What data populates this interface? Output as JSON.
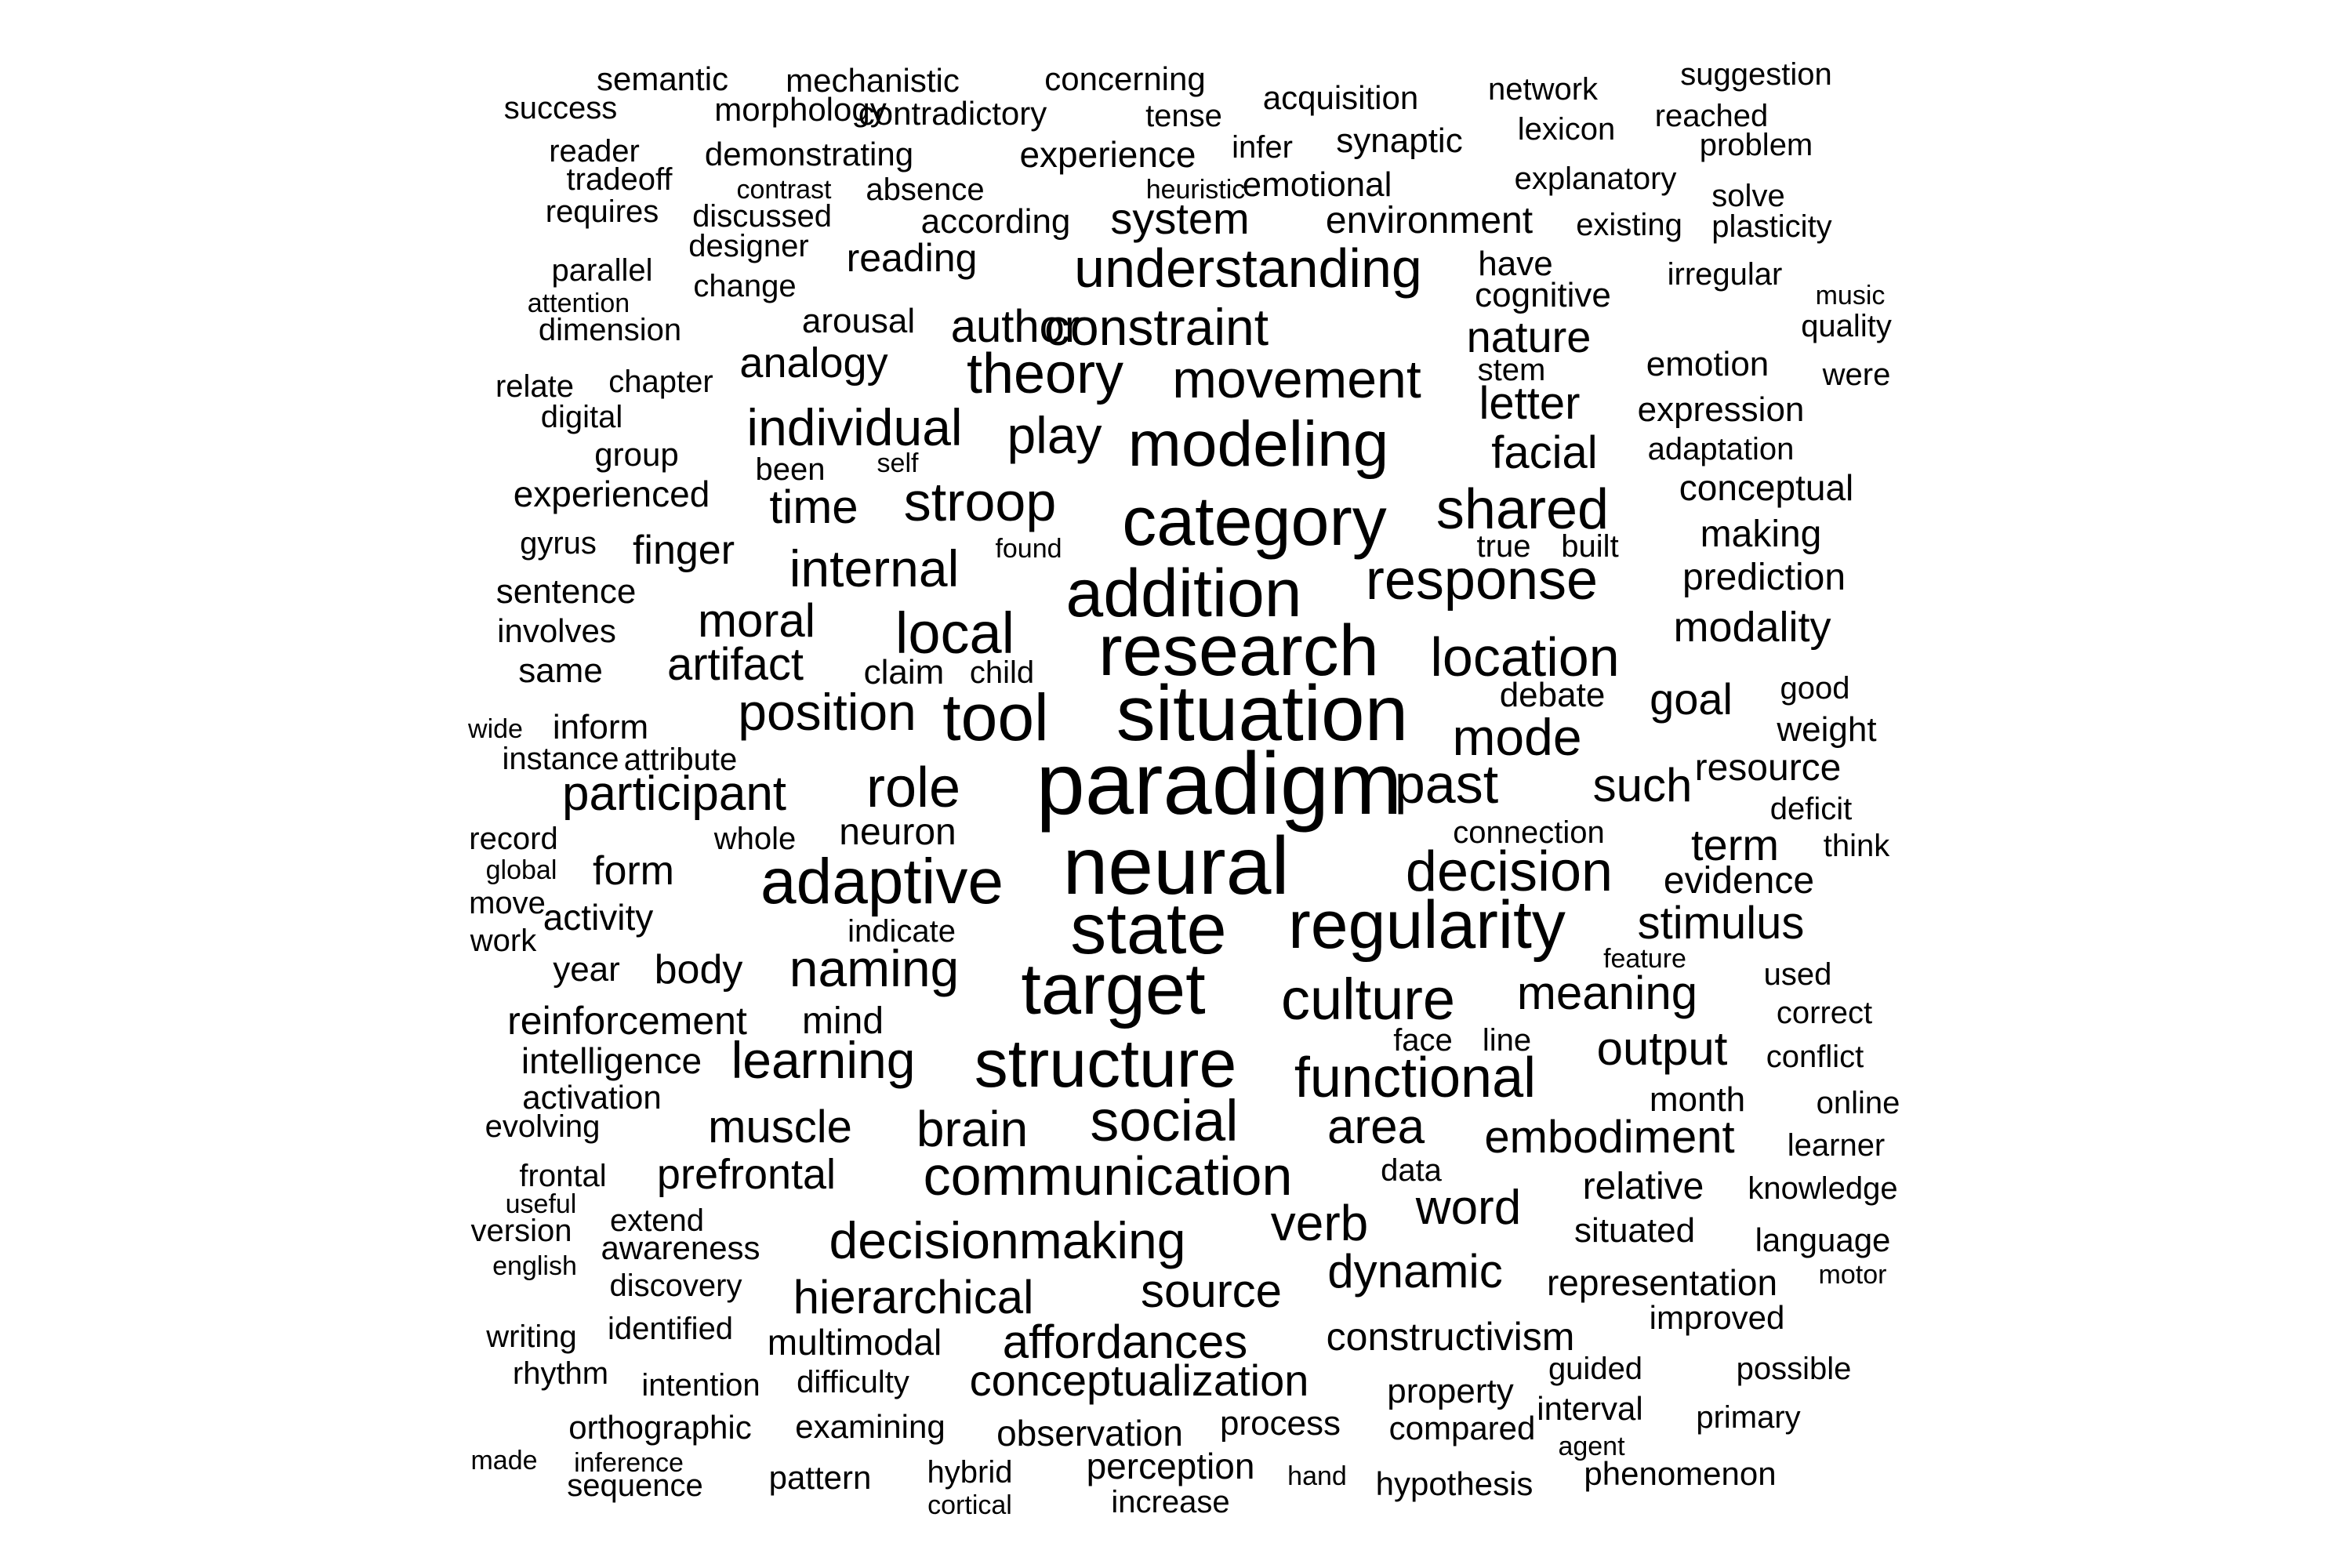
{
  "text_color": "#000000",
  "background_color": "#ffffff",
  "words": [
    {
      "text": "paradigm",
      "weight": 1.0
    },
    {
      "text": "neural",
      "weight": 0.93
    },
    {
      "text": "situation",
      "weight": 0.91
    },
    {
      "text": "research",
      "weight": 0.86
    },
    {
      "text": "target",
      "weight": 0.86
    },
    {
      "text": "state",
      "weight": 0.86
    },
    {
      "text": "regularity",
      "weight": 0.85
    },
    {
      "text": "structure",
      "weight": 0.84
    },
    {
      "text": "category",
      "weight": 0.82
    },
    {
      "text": "addition",
      "weight": 0.8
    },
    {
      "text": "tool",
      "weight": 0.78
    },
    {
      "text": "adaptive",
      "weight": 0.76
    },
    {
      "text": "culture",
      "weight": 0.72
    },
    {
      "text": "modeling",
      "weight": 0.76
    },
    {
      "text": "response",
      "weight": 0.7
    },
    {
      "text": "decision",
      "weight": 0.7
    },
    {
      "text": "communication",
      "weight": 0.68
    },
    {
      "text": "social",
      "weight": 0.68
    },
    {
      "text": "local",
      "weight": 0.7
    },
    {
      "text": "functional",
      "weight": 0.68
    },
    {
      "text": "location",
      "weight": 0.68
    },
    {
      "text": "shared",
      "weight": 0.68
    },
    {
      "text": "understanding",
      "weight": 0.66
    },
    {
      "text": "movement",
      "weight": 0.66
    },
    {
      "text": "past",
      "weight": 0.66
    },
    {
      "text": "role",
      "weight": 0.66
    },
    {
      "text": "stroop",
      "weight": 0.66
    },
    {
      "text": "theory",
      "weight": 0.66
    },
    {
      "text": "decisionmaking",
      "weight": 0.64
    },
    {
      "text": "position",
      "weight": 0.64
    },
    {
      "text": "constraint",
      "weight": 0.62
    },
    {
      "text": "mode",
      "weight": 0.62
    },
    {
      "text": "naming",
      "weight": 0.62
    },
    {
      "text": "participant",
      "weight": 0.6
    },
    {
      "text": "learning",
      "weight": 0.6
    },
    {
      "text": "internal",
      "weight": 0.6
    },
    {
      "text": "individual",
      "weight": 0.6
    },
    {
      "text": "play",
      "weight": 0.6
    },
    {
      "text": "affordances",
      "weight": 0.58
    },
    {
      "text": "hierarchical",
      "weight": 0.56
    },
    {
      "text": "verb",
      "weight": 0.6
    },
    {
      "text": "meaning",
      "weight": 0.58
    },
    {
      "text": "dynamic",
      "weight": 0.58
    },
    {
      "text": "word",
      "weight": 0.58
    },
    {
      "text": "source",
      "weight": 0.58
    },
    {
      "text": "such",
      "weight": 0.58
    },
    {
      "text": "brain",
      "weight": 0.58
    },
    {
      "text": "stimulus",
      "weight": 0.56
    },
    {
      "text": "output",
      "weight": 0.56
    },
    {
      "text": "embodiment",
      "weight": 0.56
    },
    {
      "text": "area",
      "weight": 0.56
    },
    {
      "text": "moral",
      "weight": 0.56
    },
    {
      "text": "muscle",
      "weight": 0.56
    },
    {
      "text": "conceptualization",
      "weight": 0.52
    },
    {
      "text": "artifact",
      "weight": 0.54
    },
    {
      "text": "time",
      "weight": 0.56
    },
    {
      "text": "author",
      "weight": 0.54
    },
    {
      "text": "goal",
      "weight": 0.54
    },
    {
      "text": "term",
      "weight": 0.54
    },
    {
      "text": "facial",
      "weight": 0.54
    },
    {
      "text": "nature",
      "weight": 0.52
    },
    {
      "text": "letter",
      "weight": 0.52
    },
    {
      "text": "analogy",
      "weight": 0.5
    },
    {
      "text": "prefrontal",
      "weight": 0.5
    },
    {
      "text": "constructivism",
      "weight": 0.5
    },
    {
      "text": "system",
      "weight": 0.5
    },
    {
      "text": "body",
      "weight": 0.48
    },
    {
      "text": "relative",
      "weight": 0.46
    },
    {
      "text": "modality",
      "weight": 0.5
    },
    {
      "text": "form",
      "weight": 0.48
    },
    {
      "text": "finger",
      "weight": 0.48
    },
    {
      "text": "reinforcement",
      "weight": 0.46
    },
    {
      "text": "neuron",
      "weight": 0.46
    },
    {
      "text": "evidence",
      "weight": 0.46
    },
    {
      "text": "prediction",
      "weight": 0.46
    },
    {
      "text": "making",
      "weight": 0.46
    },
    {
      "text": "mind",
      "weight": 0.46
    },
    {
      "text": "reading",
      "weight": 0.46
    },
    {
      "text": "representation",
      "weight": 0.44
    },
    {
      "text": "experience",
      "weight": 0.44
    },
    {
      "text": "environment",
      "weight": 0.44
    },
    {
      "text": "intelligence",
      "weight": 0.44
    },
    {
      "text": "activity",
      "weight": 0.44
    },
    {
      "text": "conceptual",
      "weight": 0.44
    },
    {
      "text": "resource",
      "weight": 0.44
    },
    {
      "text": "multimodal",
      "weight": 0.44
    },
    {
      "text": "arousal",
      "weight": 0.44
    },
    {
      "text": "observation",
      "weight": 0.44
    },
    {
      "text": "perception",
      "weight": 0.44
    },
    {
      "text": "process",
      "weight": 0.44
    },
    {
      "text": "experienced",
      "weight": 0.42
    },
    {
      "text": "expression",
      "weight": 0.42
    },
    {
      "text": "debate",
      "weight": 0.42
    },
    {
      "text": "situated",
      "weight": 0.42
    },
    {
      "text": "according",
      "weight": 0.42
    },
    {
      "text": "emotional",
      "weight": 0.42
    },
    {
      "text": "synaptic",
      "weight": 0.42
    },
    {
      "text": "cognitive",
      "weight": 0.42
    },
    {
      "text": "emotion",
      "weight": 0.42
    },
    {
      "text": "inform",
      "weight": 0.42
    },
    {
      "text": "sentence",
      "weight": 0.42
    },
    {
      "text": "property",
      "weight": 0.42
    },
    {
      "text": "weight",
      "weight": 0.42
    },
    {
      "text": "have",
      "weight": 0.42
    },
    {
      "text": "same",
      "weight": 0.42
    },
    {
      "text": "claim",
      "weight": 0.42
    },
    {
      "text": "year",
      "weight": 0.42
    },
    {
      "text": "month",
      "weight": 0.42
    },
    {
      "text": "improved",
      "weight": 0.4
    },
    {
      "text": "language",
      "weight": 0.4
    },
    {
      "text": "demonstrating",
      "weight": 0.4
    },
    {
      "text": "involves",
      "weight": 0.4
    },
    {
      "text": "awareness",
      "weight": 0.4
    },
    {
      "text": "connection",
      "weight": 0.4
    },
    {
      "text": "examining",
      "weight": 0.4
    },
    {
      "text": "hypothesis",
      "weight": 0.4
    },
    {
      "text": "acquisition",
      "weight": 0.4
    },
    {
      "text": "group",
      "weight": 0.4
    },
    {
      "text": "face",
      "weight": 0.4
    },
    {
      "text": "online",
      "weight": 0.4
    },
    {
      "text": "interval",
      "weight": 0.4
    },
    {
      "text": "compared",
      "weight": 0.4
    },
    {
      "text": "activation",
      "weight": 0.4
    },
    {
      "text": "correct",
      "weight": 0.4
    },
    {
      "text": "pattern",
      "weight": 0.4
    },
    {
      "text": "evolving",
      "weight": 0.4
    },
    {
      "text": "primary",
      "weight": 0.4
    },
    {
      "text": "phenomenon",
      "weight": 0.4
    },
    {
      "text": "orthographic",
      "weight": 0.4
    },
    {
      "text": "concerning",
      "weight": 0.4
    },
    {
      "text": "explanatory",
      "weight": 0.4
    },
    {
      "text": "knowledge",
      "weight": 0.4
    },
    {
      "text": "adaptation",
      "weight": 0.4
    },
    {
      "text": "mechanistic",
      "weight": 0.4
    },
    {
      "text": "contradictory",
      "weight": 0.4
    },
    {
      "text": "morphology",
      "weight": 0.4
    },
    {
      "text": "dimension",
      "weight": 0.4
    },
    {
      "text": "semantic",
      "weight": 0.4
    },
    {
      "text": "quality",
      "weight": 0.4
    },
    {
      "text": "plasticity",
      "weight": 0.4
    },
    {
      "text": "existing",
      "weight": 0.4
    },
    {
      "text": "identified",
      "weight": 0.4
    },
    {
      "text": "suggestion",
      "weight": 0.4
    },
    {
      "text": "increase",
      "weight": 0.4
    },
    {
      "text": "sequence",
      "weight": 0.4
    },
    {
      "text": "conflict",
      "weight": 0.4
    },
    {
      "text": "success",
      "weight": 0.4
    },
    {
      "text": "network",
      "weight": 0.4
    },
    {
      "text": "reached",
      "weight": 0.4
    },
    {
      "text": "problem",
      "weight": 0.4
    },
    {
      "text": "lexicon",
      "weight": 0.4
    },
    {
      "text": "version",
      "weight": 0.4
    },
    {
      "text": "frontal",
      "weight": 0.4
    },
    {
      "text": "learner",
      "weight": 0.4
    },
    {
      "text": "discovery",
      "weight": 0.4
    },
    {
      "text": "guided",
      "weight": 0.4
    },
    {
      "text": "tense",
      "weight": 0.4
    },
    {
      "text": "absence",
      "weight": 0.4
    },
    {
      "text": "instance",
      "weight": 0.4
    },
    {
      "text": "rhythm",
      "weight": 0.4
    },
    {
      "text": "possible",
      "weight": 0.4
    },
    {
      "text": "tradeoff",
      "weight": 0.4
    },
    {
      "text": "discussed",
      "weight": 0.4
    },
    {
      "text": "difficulty",
      "weight": 0.4
    },
    {
      "text": "intention",
      "weight": 0.4
    },
    {
      "text": "writing",
      "weight": 0.4
    },
    {
      "text": "reader",
      "weight": 0.4
    },
    {
      "text": "requires",
      "weight": 0.4
    },
    {
      "text": "infer",
      "weight": 0.4
    },
    {
      "text": "parallel",
      "weight": 0.4
    },
    {
      "text": "change",
      "weight": 0.4
    },
    {
      "text": "chapter",
      "weight": 0.4
    },
    {
      "text": "designer",
      "weight": 0.4
    },
    {
      "text": "relate",
      "weight": 0.4
    },
    {
      "text": "digital",
      "weight": 0.4
    },
    {
      "text": "irregular",
      "weight": 0.4
    },
    {
      "text": "solve",
      "weight": 0.4
    },
    {
      "text": "good",
      "weight": 0.4
    },
    {
      "text": "think",
      "weight": 0.4
    },
    {
      "text": "used",
      "weight": 0.4
    },
    {
      "text": "were",
      "weight": 0.4
    },
    {
      "text": "gyrus",
      "weight": 0.4
    },
    {
      "text": "indicate",
      "weight": 0.4
    },
    {
      "text": "whole",
      "weight": 0.4
    },
    {
      "text": "record",
      "weight": 0.4
    },
    {
      "text": "move",
      "weight": 0.4
    },
    {
      "text": "work",
      "weight": 0.4
    },
    {
      "text": "hybrid",
      "weight": 0.4
    },
    {
      "text": "been",
      "weight": 0.4
    },
    {
      "text": "built",
      "weight": 0.4
    },
    {
      "text": "true",
      "weight": 0.4
    },
    {
      "text": "stem",
      "weight": 0.4
    },
    {
      "text": "child",
      "weight": 0.4
    },
    {
      "text": "line",
      "weight": 0.4
    },
    {
      "text": "data",
      "weight": 0.4
    },
    {
      "text": "extend",
      "weight": 0.4
    },
    {
      "text": "attribute",
      "weight": 0.4
    },
    {
      "text": "deficit",
      "weight": 0.4
    },
    {
      "text": "made",
      "weight": 0.36
    },
    {
      "text": "inference",
      "weight": 0.36
    },
    {
      "text": "cortical",
      "weight": 0.36
    },
    {
      "text": "hand",
      "weight": 0.36
    },
    {
      "text": "agent",
      "weight": 0.36
    },
    {
      "text": "english",
      "weight": 0.36
    },
    {
      "text": "useful",
      "weight": 0.36
    },
    {
      "text": "motor",
      "weight": 0.36
    },
    {
      "text": "feature",
      "weight": 0.36
    },
    {
      "text": "global",
      "weight": 0.36
    },
    {
      "text": "wide",
      "weight": 0.36
    },
    {
      "text": "found",
      "weight": 0.36
    },
    {
      "text": "self",
      "weight": 0.36
    },
    {
      "text": "attention",
      "weight": 0.36
    },
    {
      "text": "contrast",
      "weight": 0.36
    },
    {
      "text": "heuristic",
      "weight": 0.36
    },
    {
      "text": "music",
      "weight": 0.36
    }
  ]
}
